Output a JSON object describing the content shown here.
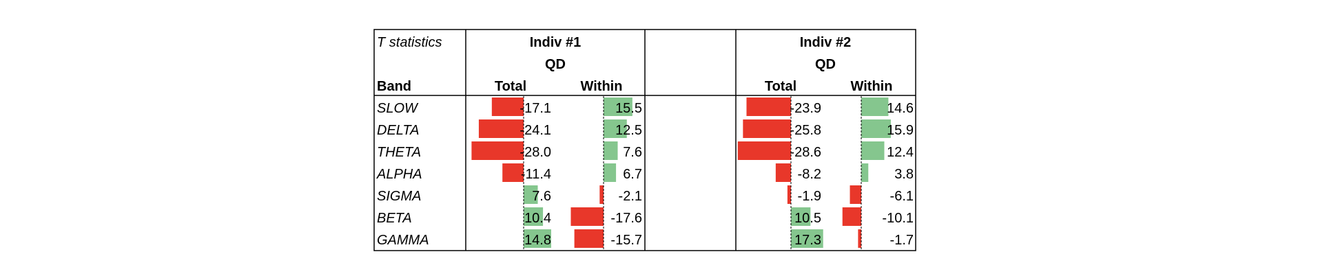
{
  "header": {
    "corner_title": "T statistics",
    "band_label": "Band",
    "groups": [
      {
        "title": "Indiv #1",
        "subtitle": "QD",
        "col_total": "Total",
        "col_within": "Within"
      },
      {
        "title": "Indiv #2",
        "subtitle": "QD",
        "col_total": "Total",
        "col_within": "Within"
      }
    ]
  },
  "colors": {
    "negative_bar": "#e8372a",
    "positive_bar": "#85c68e",
    "border": "#000000"
  },
  "chart_data": {
    "type": "table",
    "rows": [
      "SLOW",
      "DELTA",
      "THETA",
      "ALPHA",
      "SIGMA",
      "BETA",
      "GAMMA"
    ],
    "columns": [
      "Indiv #1 QD Total",
      "Indiv #1 QD Within",
      "Indiv #2 QD Total",
      "Indiv #2 QD Within"
    ],
    "values": [
      [
        -17.1,
        15.5,
        -23.9,
        14.6
      ],
      [
        -24.1,
        12.5,
        -25.8,
        15.9
      ],
      [
        -28.0,
        7.6,
        -28.6,
        12.4
      ],
      [
        -11.4,
        6.7,
        -8.2,
        3.8
      ],
      [
        7.6,
        -2.1,
        -1.9,
        -6.1
      ],
      [
        10.4,
        -17.6,
        10.5,
        -10.1
      ],
      [
        14.8,
        -15.7,
        17.3,
        -1.7
      ]
    ],
    "labels": [
      [
        "-17.1",
        "15.5",
        "-23.9",
        "14.6"
      ],
      [
        "-24.1",
        "12.5",
        "-25.8",
        "15.9"
      ],
      [
        "-28.0",
        "7.6",
        "-28.6",
        "12.4"
      ],
      [
        "-11.4",
        "6.7",
        "-8.2",
        "3.8"
      ],
      [
        "7.6",
        "-2.1",
        "-1.9",
        "-6.1"
      ],
      [
        "10.4",
        "-17.6",
        "10.5",
        "-10.1"
      ],
      [
        "14.8",
        "-15.7",
        "17.3",
        "-1.7"
      ]
    ]
  }
}
